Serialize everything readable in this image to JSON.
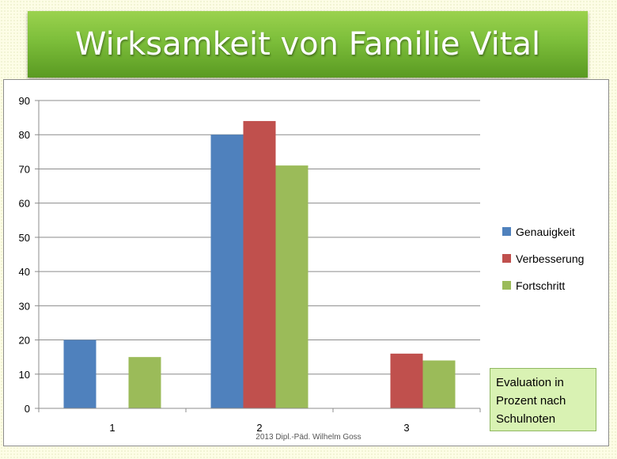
{
  "slide": {
    "title": "Wirksamkeit von Familie Vital",
    "note": "Evaluation in Prozent nach Schulnoten",
    "credit": "2013 Dipl.-Päd. Wilhelm Goss"
  },
  "chart_data": {
    "type": "bar",
    "categories": [
      "1",
      "2",
      "3"
    ],
    "series": [
      {
        "name": "Genauigkeit",
        "color": "#4f81bd",
        "values": [
          20,
          80,
          null
        ]
      },
      {
        "name": "Verbesserung",
        "color": "#c0504d",
        "values": [
          null,
          84,
          16
        ]
      },
      {
        "name": "Fortschritt",
        "color": "#9bbb59",
        "values": [
          15,
          71,
          14
        ]
      }
    ],
    "ylim": [
      0,
      90
    ],
    "yticks": [
      0,
      10,
      20,
      30,
      40,
      50,
      60,
      70,
      80,
      90
    ],
    "grid": true,
    "legend": "right",
    "title": "",
    "xlabel": "",
    "ylabel": ""
  }
}
